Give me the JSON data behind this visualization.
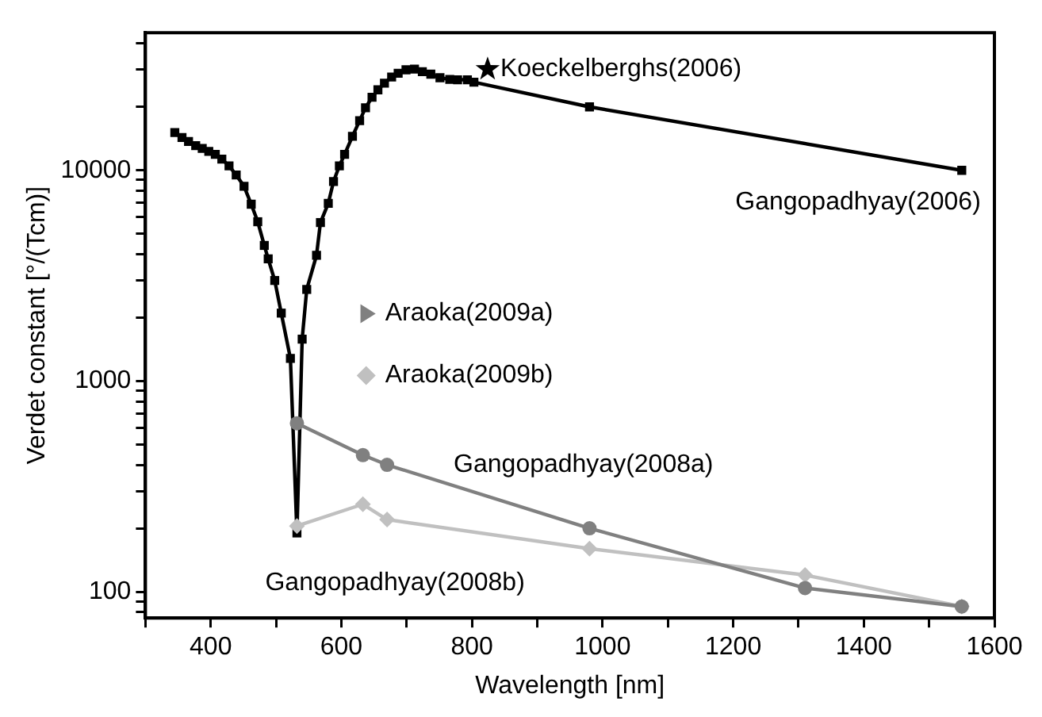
{
  "chart_data": {
    "type": "line",
    "xlabel": "Wavelength [nm]",
    "ylabel": "Verdet constant [°/(Tcm)]",
    "log": "y",
    "grid": false,
    "legend": "center",
    "xlim": [
      300,
      1600
    ],
    "xticks": [
      {
        "value": 300,
        "label": null
      },
      400,
      {
        "value": 500,
        "label": null
      },
      600,
      {
        "value": 700,
        "label": null
      },
      800,
      {
        "value": 900,
        "label": null
      },
      1000,
      {
        "value": 1100,
        "label": null
      },
      1200,
      {
        "value": 1300,
        "label": null
      },
      1400,
      {
        "value": 1500,
        "label": null
      },
      1600
    ],
    "ylim": [
      75,
      45000
    ],
    "yticks": [
      {
        "value": 80,
        "label": null
      },
      {
        "value": 90,
        "label": null
      },
      100,
      {
        "value": 200,
        "label": null
      },
      {
        "value": 300,
        "label": null
      },
      {
        "value": 400,
        "label": null
      },
      {
        "value": 500,
        "label": null
      },
      {
        "value": 600,
        "label": null
      },
      {
        "value": 700,
        "label": null
      },
      {
        "value": 800,
        "label": null
      },
      {
        "value": 900,
        "label": null
      },
      1000,
      {
        "value": 2000,
        "label": null
      },
      {
        "value": 3000,
        "label": null
      },
      {
        "value": 4000,
        "label": null
      },
      {
        "value": 5000,
        "label": null
      },
      {
        "value": 6000,
        "label": null
      },
      {
        "value": 7000,
        "label": null
      },
      {
        "value": 8000,
        "label": null
      },
      {
        "value": 9000,
        "label": null
      },
      10000,
      {
        "value": 20000,
        "label": null
      },
      {
        "value": 30000,
        "label": null
      },
      {
        "value": 40000,
        "label": null
      }
    ],
    "series": [
      {
        "name": "Gangopadhyay(2006)",
        "color": "#000000",
        "marker": "square",
        "x": [
          345,
          356,
          366,
          377,
          387,
          397,
          407,
          417,
          428,
          439,
          451,
          462,
          472,
          482,
          488,
          498,
          508,
          522,
          532,
          540,
          547,
          562,
          568,
          580,
          588,
          597,
          605,
          617,
          628,
          637,
          647,
          656,
          666,
          677,
          687,
          699,
          712,
          724,
          737,
          751,
          766,
          778,
          793,
          803,
          980,
          1550
        ],
        "values": [
          15100,
          14300,
          13700,
          13100,
          12700,
          12300,
          11900,
          11300,
          10500,
          9500,
          8400,
          6900,
          5700,
          4400,
          3800,
          3000,
          2100,
          1280,
          190,
          1580,
          2720,
          3950,
          5650,
          6970,
          8840,
          10500,
          11900,
          14500,
          17200,
          19800,
          22200,
          24100,
          25900,
          27700,
          28900,
          30000,
          30200,
          29400,
          28600,
          27500,
          27000,
          26900,
          26900,
          26200,
          20000,
          10000
        ]
      },
      {
        "name": "Koeckelberghs(2006)",
        "color": "#000000",
        "marker": "star",
        "x": [
          824
        ],
        "values": [
          30200
        ]
      },
      {
        "name": "Gangopadhyay(2008a)",
        "color": "#808080",
        "marker": "circle",
        "x": [
          532,
          633,
          670,
          980,
          1310,
          1550
        ],
        "values": [
          630,
          445,
          400,
          200,
          104,
          85
        ]
      },
      {
        "name": "Gangopadhyay(2008b)",
        "color": "#c0c0c0",
        "marker": "diamond",
        "x": [
          532,
          633,
          670,
          980,
          1310,
          1550
        ],
        "values": [
          205,
          260,
          220,
          160,
          120,
          85
        ]
      },
      {
        "name": "Araoka(2009a)",
        "type": "scatter",
        "color": "#808080",
        "marker": "triangle"
      },
      {
        "name": "Araoka(2009b)",
        "type": "scatter",
        "color": "#c0c0c0",
        "marker": "diamond"
      }
    ]
  }
}
